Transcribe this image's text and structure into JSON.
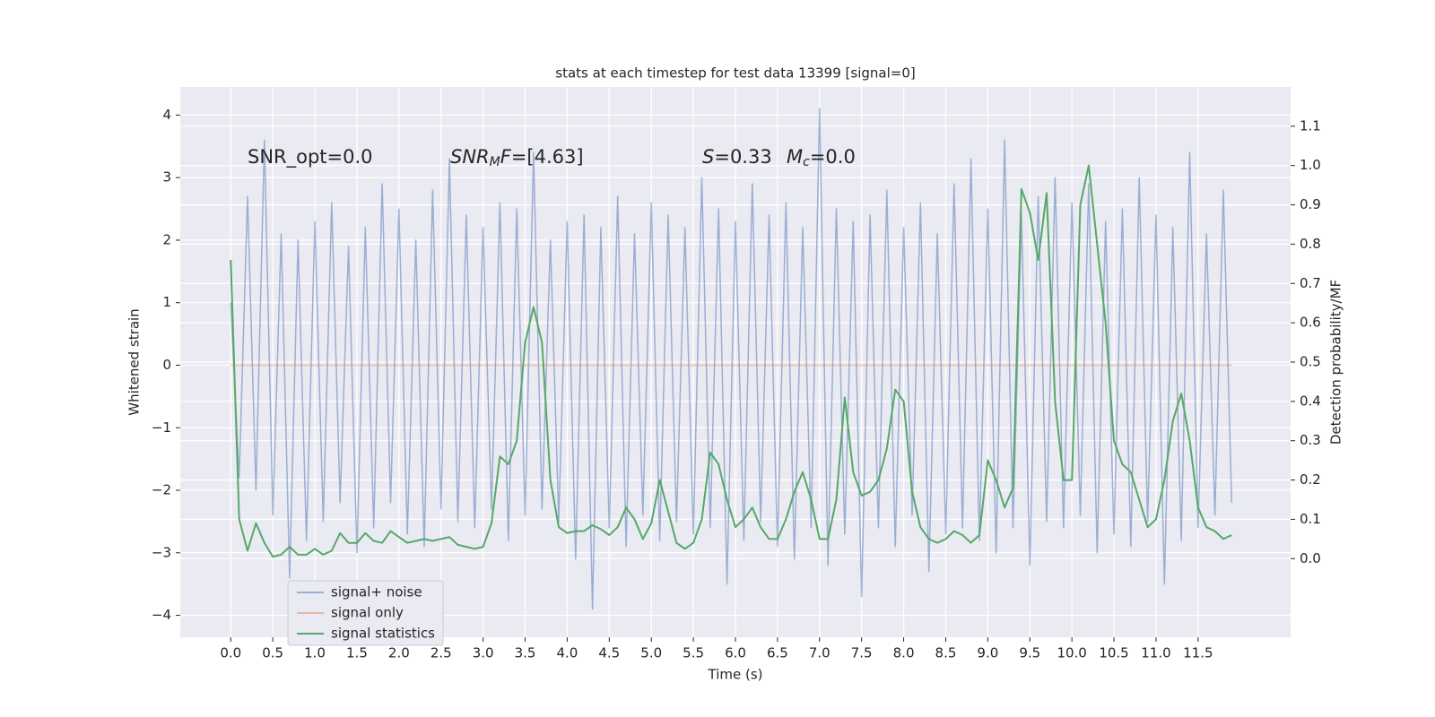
{
  "chart_data": {
    "type": "line",
    "title": "stats at each timestep for test data 13399 [signal=0]",
    "xlabel": "Time (s)",
    "ylabel": "Whitened strain",
    "y2label": "Detection probability/MF",
    "xlim": [
      -0.6,
      12.6
    ],
    "ylim": [
      -4.35,
      4.45
    ],
    "y2lim": [
      -0.2,
      1.2
    ],
    "xticks": [
      {
        "value": 0,
        "label": "0.0"
      },
      0.5,
      {
        "value": 1,
        "label": "1.0"
      },
      1.5,
      {
        "value": 2,
        "label": "2.0"
      },
      2.5,
      {
        "value": 3,
        "label": "3.0"
      },
      3.5,
      {
        "value": 4,
        "label": "4.0"
      },
      4.5,
      {
        "value": 5,
        "label": "5.0"
      },
      5.5,
      {
        "value": 6,
        "label": "6.0"
      },
      6.5,
      {
        "value": 7,
        "label": "7.0"
      },
      7.5,
      {
        "value": 8,
        "label": "8.0"
      },
      8.5,
      {
        "value": 9,
        "label": "9.0"
      },
      9.5,
      {
        "value": 10,
        "label": "10.0"
      },
      10.5,
      {
        "value": 11,
        "label": "11.0"
      },
      11.5
    ],
    "yticks": [
      {
        "value": -4,
        "label": "−4"
      },
      {
        "value": -3,
        "label": "−3"
      },
      {
        "value": -2,
        "label": "−2"
      },
      {
        "value": -1,
        "label": "−1"
      },
      0,
      1,
      2,
      3,
      4
    ],
    "y2ticks": [
      {
        "value": 0,
        "label": "0.0"
      },
      0.1,
      0.2,
      0.3,
      0.4,
      0.5,
      0.6,
      0.7,
      0.8,
      0.9,
      {
        "value": 1,
        "label": "1.0"
      },
      1.1
    ],
    "grid": true,
    "legend": "lower left",
    "x": [
      0.0,
      0.1,
      0.2,
      0.3,
      0.4,
      0.5,
      0.6,
      0.7,
      0.8,
      0.9,
      1.0,
      1.1,
      1.2,
      1.3,
      1.4,
      1.5,
      1.6,
      1.7,
      1.8,
      1.9,
      2.0,
      2.1,
      2.2,
      2.3,
      2.4,
      2.5,
      2.6,
      2.7,
      2.8,
      2.9,
      3.0,
      3.1,
      3.2,
      3.3,
      3.4,
      3.5,
      3.6,
      3.7,
      3.8,
      3.9,
      4.0,
      4.1,
      4.2,
      4.3,
      4.4,
      4.5,
      4.6,
      4.7,
      4.8,
      4.9,
      5.0,
      5.1,
      5.2,
      5.3,
      5.4,
      5.5,
      5.6,
      5.7,
      5.8,
      5.9,
      6.0,
      6.1,
      6.2,
      6.3,
      6.4,
      6.5,
      6.6,
      6.7,
      6.8,
      6.9,
      7.0,
      7.1,
      7.2,
      7.3,
      7.4,
      7.5,
      7.6,
      7.7,
      7.8,
      7.9,
      8.0,
      8.1,
      8.2,
      8.3,
      8.4,
      8.5,
      8.6,
      8.7,
      8.8,
      8.9,
      9.0,
      9.1,
      9.2,
      9.3,
      9.4,
      9.5,
      9.6,
      9.7,
      9.8,
      9.9,
      10.0,
      10.1,
      10.2,
      10.3,
      10.4,
      10.5,
      10.6,
      10.7,
      10.8,
      10.9,
      11.0,
      11.1,
      11.2,
      11.3,
      11.4,
      11.5,
      11.6,
      11.7,
      11.8,
      11.9
    ],
    "series": [
      {
        "name": "signal+ noise",
        "color": "#4c72b0",
        "axis": "y",
        "values": [
          1.0,
          -1.8,
          2.7,
          -2.0,
          3.6,
          -2.4,
          2.1,
          -3.4,
          2.0,
          -2.8,
          2.3,
          -2.5,
          2.6,
          -2.2,
          1.9,
          -3.0,
          2.2,
          -2.6,
          2.9,
          -2.2,
          2.5,
          -2.7,
          2.0,
          -2.9,
          2.8,
          -2.3,
          3.3,
          -2.5,
          2.4,
          -2.6,
          2.2,
          -2.3,
          2.6,
          -2.8,
          2.5,
          -2.4,
          3.4,
          -2.3,
          2.0,
          -2.5,
          2.3,
          -3.1,
          2.4,
          -3.9,
          2.2,
          -2.6,
          2.7,
          -2.9,
          2.1,
          -2.4,
          2.6,
          -2.8,
          2.4,
          -2.5,
          2.2,
          -2.7,
          3.0,
          -2.6,
          2.5,
          -3.5,
          2.3,
          -2.8,
          2.9,
          -2.5,
          2.4,
          -2.9,
          2.6,
          -3.1,
          2.2,
          -2.6,
          4.1,
          -3.2,
          2.5,
          -2.7,
          2.3,
          -3.7,
          2.4,
          -2.6,
          2.8,
          -2.9,
          2.2,
          -2.4,
          2.6,
          -3.3,
          2.1,
          -2.7,
          2.9,
          -2.6,
          3.3,
          -2.8,
          2.5,
          -3.0,
          3.6,
          -2.6,
          2.4,
          -3.2,
          2.7,
          -2.5,
          3.0,
          -2.6,
          2.6,
          -2.4,
          2.9,
          -3.0,
          2.3,
          -2.7,
          2.5,
          -2.9,
          3.0,
          -2.5,
          2.4,
          -3.5,
          2.2,
          -2.8,
          3.4,
          -2.6,
          2.1,
          -2.4,
          2.8,
          -2.2
        ]
      },
      {
        "name": "signal only",
        "color": "#dd8452",
        "axis": "y",
        "x": [
          0.0,
          11.9
        ],
        "values": [
          0,
          0
        ]
      },
      {
        "name": "signal statistics",
        "color": "#55a868",
        "axis": "y2",
        "values": [
          0.76,
          0.1,
          0.02,
          0.09,
          0.04,
          0.005,
          0.01,
          0.03,
          0.01,
          0.01,
          0.025,
          0.01,
          0.02,
          0.065,
          0.04,
          0.04,
          0.065,
          0.045,
          0.04,
          0.07,
          0.055,
          0.04,
          0.045,
          0.05,
          0.045,
          0.05,
          0.055,
          0.035,
          0.03,
          0.025,
          0.03,
          0.09,
          0.26,
          0.24,
          0.3,
          0.55,
          0.64,
          0.55,
          0.2,
          0.08,
          0.065,
          0.07,
          0.07,
          0.085,
          0.075,
          0.06,
          0.08,
          0.13,
          0.1,
          0.05,
          0.09,
          0.2,
          0.12,
          0.04,
          0.025,
          0.04,
          0.1,
          0.27,
          0.24,
          0.15,
          0.08,
          0.1,
          0.13,
          0.08,
          0.05,
          0.05,
          0.1,
          0.17,
          0.22,
          0.15,
          0.05,
          0.05,
          0.15,
          0.41,
          0.22,
          0.16,
          0.17,
          0.2,
          0.28,
          0.43,
          0.4,
          0.17,
          0.08,
          0.05,
          0.04,
          0.05,
          0.07,
          0.06,
          0.04,
          0.06,
          0.25,
          0.2,
          0.13,
          0.18,
          0.94,
          0.88,
          0.76,
          0.93,
          0.4,
          0.2,
          0.2,
          0.9,
          1.0,
          0.8,
          0.6,
          0.3,
          0.24,
          0.22,
          0.15,
          0.08,
          0.1,
          0.2,
          0.35,
          0.42,
          0.3,
          0.13,
          0.08,
          0.07,
          0.05,
          0.06
        ]
      }
    ],
    "annotations": [
      {
        "parts": [
          {
            "text": "SNR_opt=0.0",
            "style": "normal"
          }
        ]
      },
      {
        "parts": [
          {
            "text": "SNR",
            "style": "italic"
          },
          {
            "text": "M",
            "style": "sub"
          },
          {
            "text": "F",
            "style": "italic"
          },
          {
            "text": "=[4.63]",
            "style": "normal"
          }
        ]
      },
      {
        "parts": [
          {
            "text": "S",
            "style": "italic"
          },
          {
            "text": "=0.33",
            "style": "normal"
          }
        ]
      },
      {
        "parts": [
          {
            "text": "M",
            "style": "italic"
          },
          {
            "text": "c",
            "style": "sub"
          },
          {
            "text": "=0.0",
            "style": "normal"
          }
        ]
      }
    ]
  }
}
